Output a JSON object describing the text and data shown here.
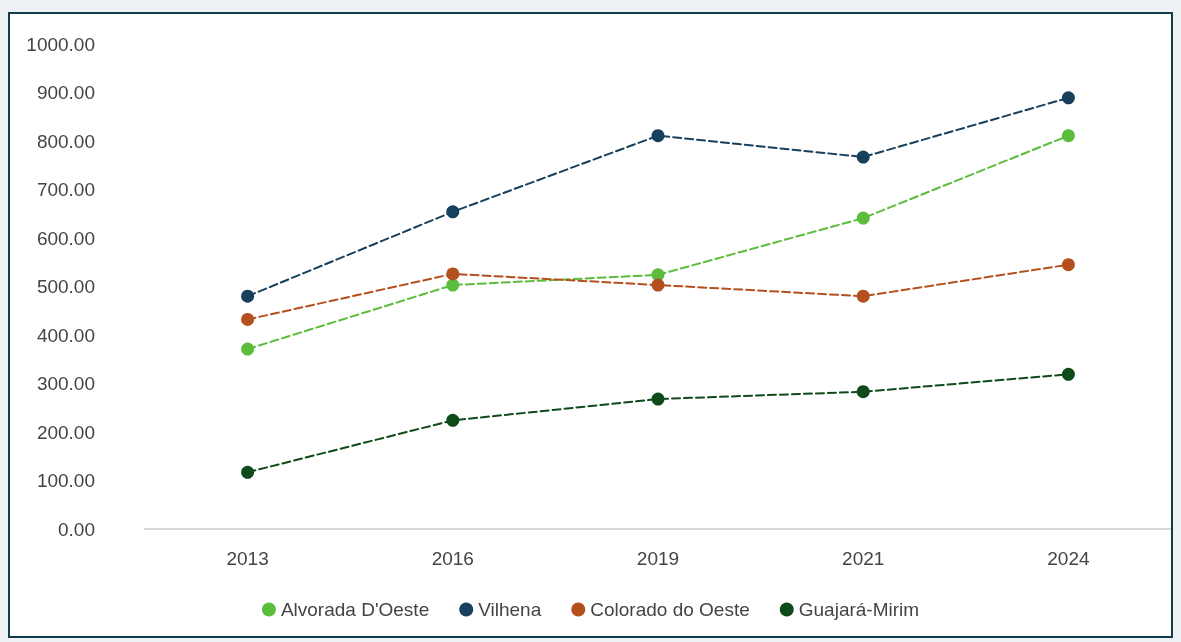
{
  "chart_data": {
    "type": "line",
    "categories": [
      "2013",
      "2016",
      "2019",
      "2021",
      "2024"
    ],
    "series": [
      {
        "name": "Alvorada D'Oeste",
        "color": "#5cbc3c",
        "values": [
          371,
          503,
          524,
          641,
          811
        ]
      },
      {
        "name": "Vilhena",
        "color": "#17405c",
        "values": [
          480,
          654,
          811,
          767,
          889
        ]
      },
      {
        "name": "Colorado do Oeste",
        "color": "#b4501e",
        "values": [
          432,
          526,
          503,
          480,
          545
        ]
      },
      {
        "name": "Guajará-Mirim",
        "color": "#0e4a1a",
        "values": [
          117,
          224,
          268,
          283,
          319
        ]
      }
    ],
    "ylim": [
      0,
      1000
    ],
    "yticks": [
      {
        "value": 0,
        "label": "0.00"
      },
      {
        "value": 100,
        "label": "100.00"
      },
      {
        "value": 200,
        "label": "200.00"
      },
      {
        "value": 300,
        "label": "300.00"
      },
      {
        "value": 400,
        "label": "400.00"
      },
      {
        "value": 500,
        "label": "500.00"
      },
      {
        "value": 600,
        "label": "600.00"
      },
      {
        "value": 700,
        "label": "700.00"
      },
      {
        "value": 800,
        "label": "800.00"
      },
      {
        "value": 900,
        "label": "900.00"
      },
      {
        "value": 1000,
        "label": "1000.00"
      }
    ],
    "grid": false,
    "legend": "bottom",
    "marker": "circle",
    "line_style": "dashed"
  }
}
